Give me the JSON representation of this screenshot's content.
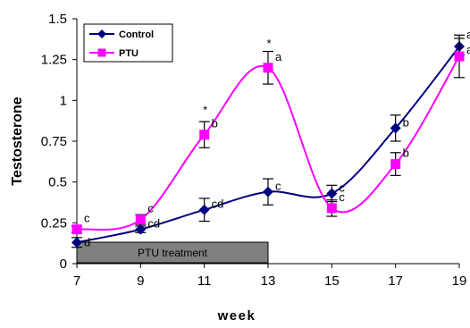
{
  "chart_data": {
    "type": "line",
    "xlabel": "week",
    "ylabel": "Testosterone",
    "xlim": [
      7,
      19
    ],
    "ylim": [
      0,
      1.5
    ],
    "xticks": [
      "7",
      "9",
      "11",
      "13",
      "15",
      "17",
      "19"
    ],
    "yticks": [
      "0",
      "0.25",
      "0.5",
      "0.75",
      "1",
      "1.25",
      "1.5"
    ],
    "legend_position": "top-left",
    "series": [
      {
        "name": "Control",
        "color": "#000080",
        "marker": "diamond",
        "x": [
          7,
          9,
          11,
          13,
          15,
          17,
          19
        ],
        "y": [
          0.13,
          0.21,
          0.33,
          0.44,
          0.43,
          0.83,
          1.33
        ],
        "error": [
          0.03,
          0.02,
          0.07,
          0.08,
          0.05,
          0.08,
          0.05
        ],
        "labels": [
          "d",
          "cd",
          "cd",
          "c",
          "c",
          "b",
          "a"
        ],
        "stars": [
          "",
          "",
          "",
          "",
          "",
          "",
          ""
        ]
      },
      {
        "name": "PTU",
        "color": "#FF00FF",
        "marker": "square",
        "x": [
          7,
          9,
          11,
          13,
          15,
          17,
          19
        ],
        "y": [
          0.21,
          0.27,
          0.79,
          1.2,
          0.34,
          0.61,
          1.27
        ],
        "error": [
          0.02,
          0.03,
          0.08,
          0.1,
          0.05,
          0.07,
          0.13
        ],
        "labels": [
          "c",
          "c",
          "b",
          "a",
          "c",
          "b",
          "a"
        ],
        "stars": [
          "",
          "",
          "*",
          "*",
          "",
          "",
          ""
        ]
      }
    ],
    "annotation": {
      "text": "PTU treatment",
      "x_start": 7,
      "x_end": 13,
      "color": "#808080"
    }
  }
}
